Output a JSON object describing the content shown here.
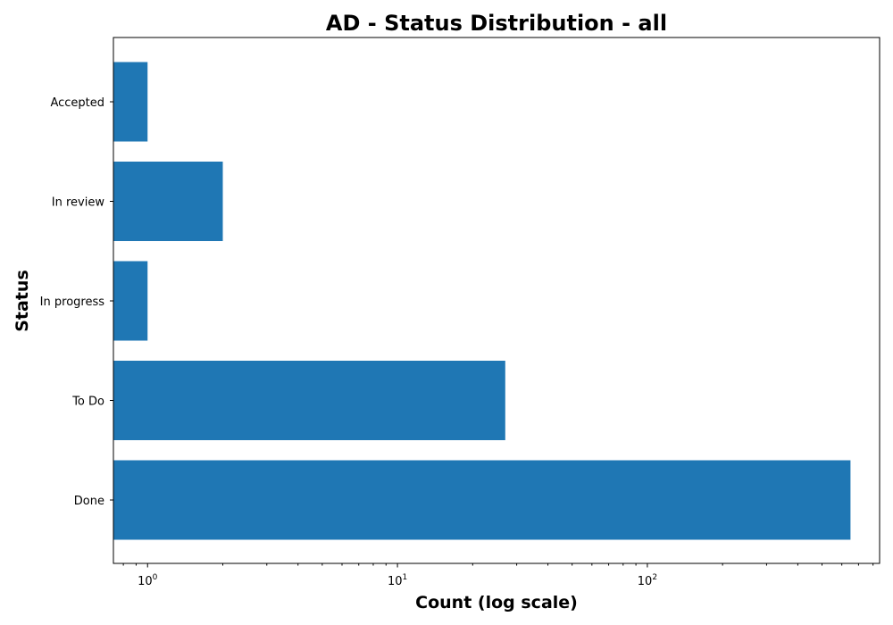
{
  "chart_data": {
    "type": "bar",
    "orientation": "horizontal",
    "title": "AD - Status Distribution - all",
    "xlabel": "Count (log scale)",
    "ylabel": "Status",
    "xscale": "log",
    "xlim": [
      0.73,
      850
    ],
    "x_ticks": [
      {
        "value": 1,
        "base": "10",
        "exp": "0"
      },
      {
        "value": 10,
        "base": "10",
        "exp": "1"
      },
      {
        "value": 100,
        "base": "10",
        "exp": "2"
      }
    ],
    "categories": [
      "Done",
      "To Do",
      "In progress",
      "In review",
      "Accepted"
    ],
    "values": [
      650,
      27,
      1,
      2,
      1
    ],
    "bar_color": "#1f77b4",
    "grid": false,
    "legend": "none"
  }
}
